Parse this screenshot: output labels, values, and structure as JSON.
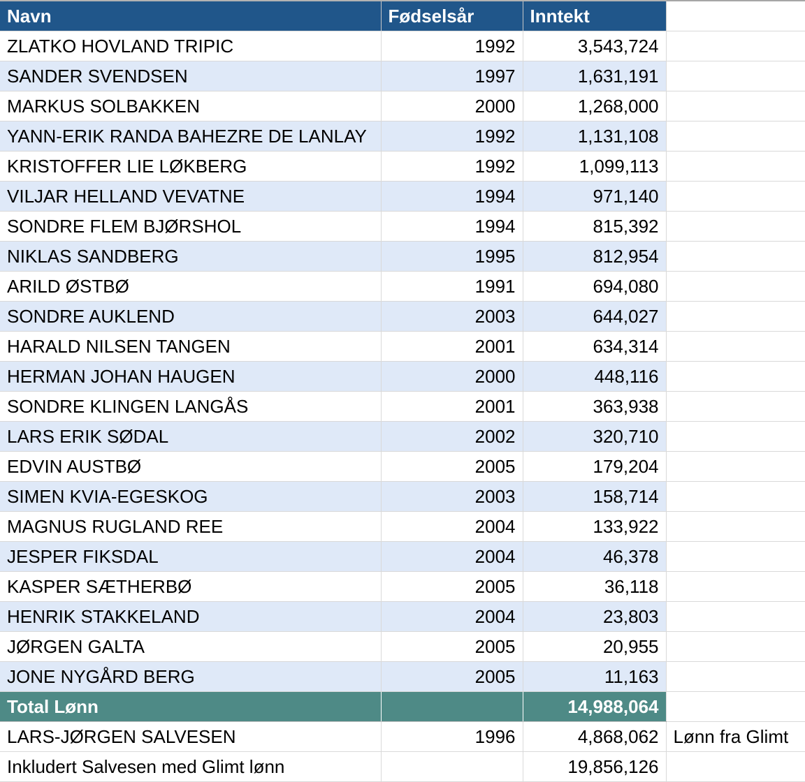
{
  "table": {
    "columns": [
      {
        "label": "Navn"
      },
      {
        "label": "Fødselsår"
      },
      {
        "label": "Inntekt"
      },
      {
        "label": ""
      }
    ],
    "rows": [
      {
        "name": "ZLATKO HOVLAND TRIPIC",
        "year": "1992",
        "income": "3,543,724",
        "note": ""
      },
      {
        "name": "SANDER SVENDSEN",
        "year": "1997",
        "income": "1,631,191",
        "note": ""
      },
      {
        "name": "MARKUS SOLBAKKEN",
        "year": "2000",
        "income": "1,268,000",
        "note": ""
      },
      {
        "name": "YANN-ERIK RANDA BAHEZRE DE LANLAY",
        "year": "1992",
        "income": "1,131,108",
        "note": ""
      },
      {
        "name": "KRISTOFFER LIE LØKBERG",
        "year": "1992",
        "income": "1,099,113",
        "note": ""
      },
      {
        "name": "VILJAR HELLAND VEVATNE",
        "year": "1994",
        "income": "971,140",
        "note": ""
      },
      {
        "name": "SONDRE FLEM BJØRSHOL",
        "year": "1994",
        "income": "815,392",
        "note": ""
      },
      {
        "name": "NIKLAS SANDBERG",
        "year": "1995",
        "income": "812,954",
        "note": ""
      },
      {
        "name": "ARILD ØSTBØ",
        "year": "1991",
        "income": "694,080",
        "note": ""
      },
      {
        "name": "SONDRE AUKLEND",
        "year": "2003",
        "income": "644,027",
        "note": ""
      },
      {
        "name": "HARALD NILSEN TANGEN",
        "year": "2001",
        "income": "634,314",
        "note": ""
      },
      {
        "name": "HERMAN JOHAN HAUGEN",
        "year": "2000",
        "income": "448,116",
        "note": ""
      },
      {
        "name": "SONDRE KLINGEN LANGÅS",
        "year": "2001",
        "income": "363,938",
        "note": ""
      },
      {
        "name": "LARS ERIK SØDAL",
        "year": "2002",
        "income": "320,710",
        "note": ""
      },
      {
        "name": "EDVIN AUSTBØ",
        "year": "2005",
        "income": "179,204",
        "note": ""
      },
      {
        "name": "SIMEN KVIA-EGESKOG",
        "year": "2003",
        "income": "158,714",
        "note": ""
      },
      {
        "name": "MAGNUS RUGLAND REE",
        "year": "2004",
        "income": "133,922",
        "note": ""
      },
      {
        "name": "JESPER FIKSDAL",
        "year": "2004",
        "income": "46,378",
        "note": ""
      },
      {
        "name": "KASPER SÆTHERBØ",
        "year": "2005",
        "income": "36,118",
        "note": ""
      },
      {
        "name": "HENRIK STAKKELAND",
        "year": "2004",
        "income": "23,803",
        "note": ""
      },
      {
        "name": "JØRGEN GALTA",
        "year": "2005",
        "income": "20,955",
        "note": ""
      },
      {
        "name": "JONE NYGÅRD BERG",
        "year": "2005",
        "income": "11,163",
        "note": ""
      }
    ],
    "total_row": {
      "label": "Total Lønn",
      "year": "",
      "income": "14,988,064",
      "note": ""
    },
    "extra_rows": [
      {
        "name": "LARS-JØRGEN SALVESEN",
        "year": "1996",
        "income": "4,868,062",
        "note": "Lønn fra Glimt"
      },
      {
        "name": "Inkludert Salvesen med Glimt lønn",
        "year": "",
        "income": "19,856,126",
        "note": ""
      }
    ],
    "colors": {
      "header_bg": "#20568A",
      "stripe_bg": "#DFE9F8",
      "total_bg": "#4E8A86",
      "border": "#D9D9D9",
      "header_text": "#FFFFFF",
      "text": "#000000"
    }
  }
}
